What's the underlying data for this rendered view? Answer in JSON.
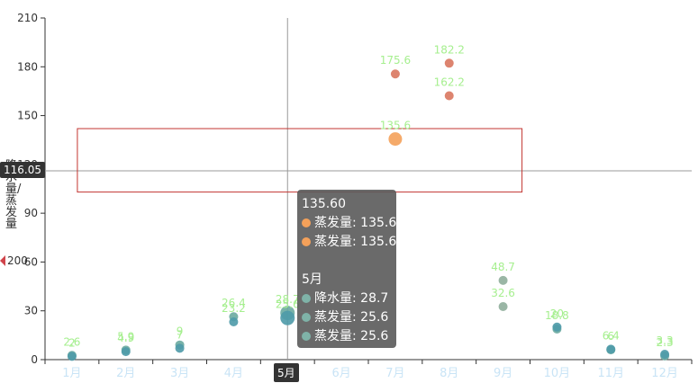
{
  "chart_data": {
    "type": "scatter",
    "categories": [
      "1月",
      "2月",
      "3月",
      "4月",
      "5月",
      "6月",
      "7月",
      "8月",
      "9月",
      "10月",
      "11月",
      "12月"
    ],
    "ylabel": "降水量/蒸发量",
    "ylim": [
      0,
      210
    ],
    "yticks": [
      "0",
      "30",
      "60",
      "90",
      "120",
      "150",
      "180",
      "210"
    ],
    "series": [
      {
        "name": "降水量",
        "values": [
          2.6,
          5.9,
          9.0,
          26.4,
          28.7,
          null,
          175.6,
          182.2,
          48.7,
          18.8,
          6.0,
          2.3
        ],
        "color": "#6aaaa0"
      },
      {
        "name": "蒸发量",
        "values": [
          2.0,
          4.9,
          7.0,
          23.2,
          25.6,
          null,
          135.6,
          162.2,
          32.6,
          20.0,
          6.4,
          3.3
        ],
        "color": "#4e9aa8"
      }
    ],
    "data_labels": [
      {
        "text": "2.6",
        "cat": 0,
        "y": 2.6
      },
      {
        "text": "2",
        "cat": 0,
        "y": 2.0
      },
      {
        "text": "5.9",
        "cat": 1,
        "y": 5.9
      },
      {
        "text": "4.9",
        "cat": 1,
        "y": 4.9
      },
      {
        "text": "9",
        "cat": 2,
        "y": 9.0
      },
      {
        "text": "7",
        "cat": 2,
        "y": 7.0
      },
      {
        "text": "26.4",
        "cat": 3,
        "y": 26.4
      },
      {
        "text": "23.2",
        "cat": 3,
        "y": 23.2
      },
      {
        "text": "28.7",
        "cat": 4,
        "y": 28.7
      },
      {
        "text": "25.6",
        "cat": 4,
        "y": 25.6
      },
      {
        "text": "175.6",
        "cat": 6,
        "y": 175.6
      },
      {
        "text": "135.6",
        "cat": 6,
        "y": 135.6
      },
      {
        "text": "182.2",
        "cat": 7,
        "y": 182.2
      },
      {
        "text": "162.2",
        "cat": 7,
        "y": 162.2
      },
      {
        "text": "48.7",
        "cat": 8,
        "y": 48.7
      },
      {
        "text": "32.6",
        "cat": 8,
        "y": 32.6
      },
      {
        "text": "18.8",
        "cat": 9,
        "y": 18.8
      },
      {
        "text": "20",
        "cat": 9,
        "y": 20.0
      },
      {
        "text": "6",
        "cat": 10,
        "y": 6.0
      },
      {
        "text": "6.4",
        "cat": 10,
        "y": 6.4
      },
      {
        "text": "2.3",
        "cat": 11,
        "y": 2.3
      },
      {
        "text": "3.3",
        "cat": 11,
        "y": 3.3
      }
    ],
    "points_color": {
      "7_high": "#d9775f",
      "8": "#d9775f",
      "7_low": "#f4a15a",
      "9": "#8fae9b"
    },
    "crosshair": {
      "x_category": "5月",
      "y_value": "116.05"
    },
    "selection_box": {
      "y_from": 103,
      "y_to": 142,
      "x_from_category": "1月",
      "x_to_category": "9月"
    },
    "left_marker_value": "200",
    "tooltip": {
      "title1": "135.60",
      "rows1": [
        {
          "label": "蒸发量: 135.6",
          "color": "#f4a15a"
        },
        {
          "label": "蒸发量: 135.6",
          "color": "#f4a15a"
        }
      ],
      "title2": "5月",
      "rows2": [
        {
          "label": "降水量: 28.7",
          "color": "#7fb3a8"
        },
        {
          "label": "蒸发量: 25.6",
          "color": "#7fb3a8"
        },
        {
          "label": "蒸发量: 25.6",
          "color": "#7fb3a8"
        }
      ]
    }
  }
}
